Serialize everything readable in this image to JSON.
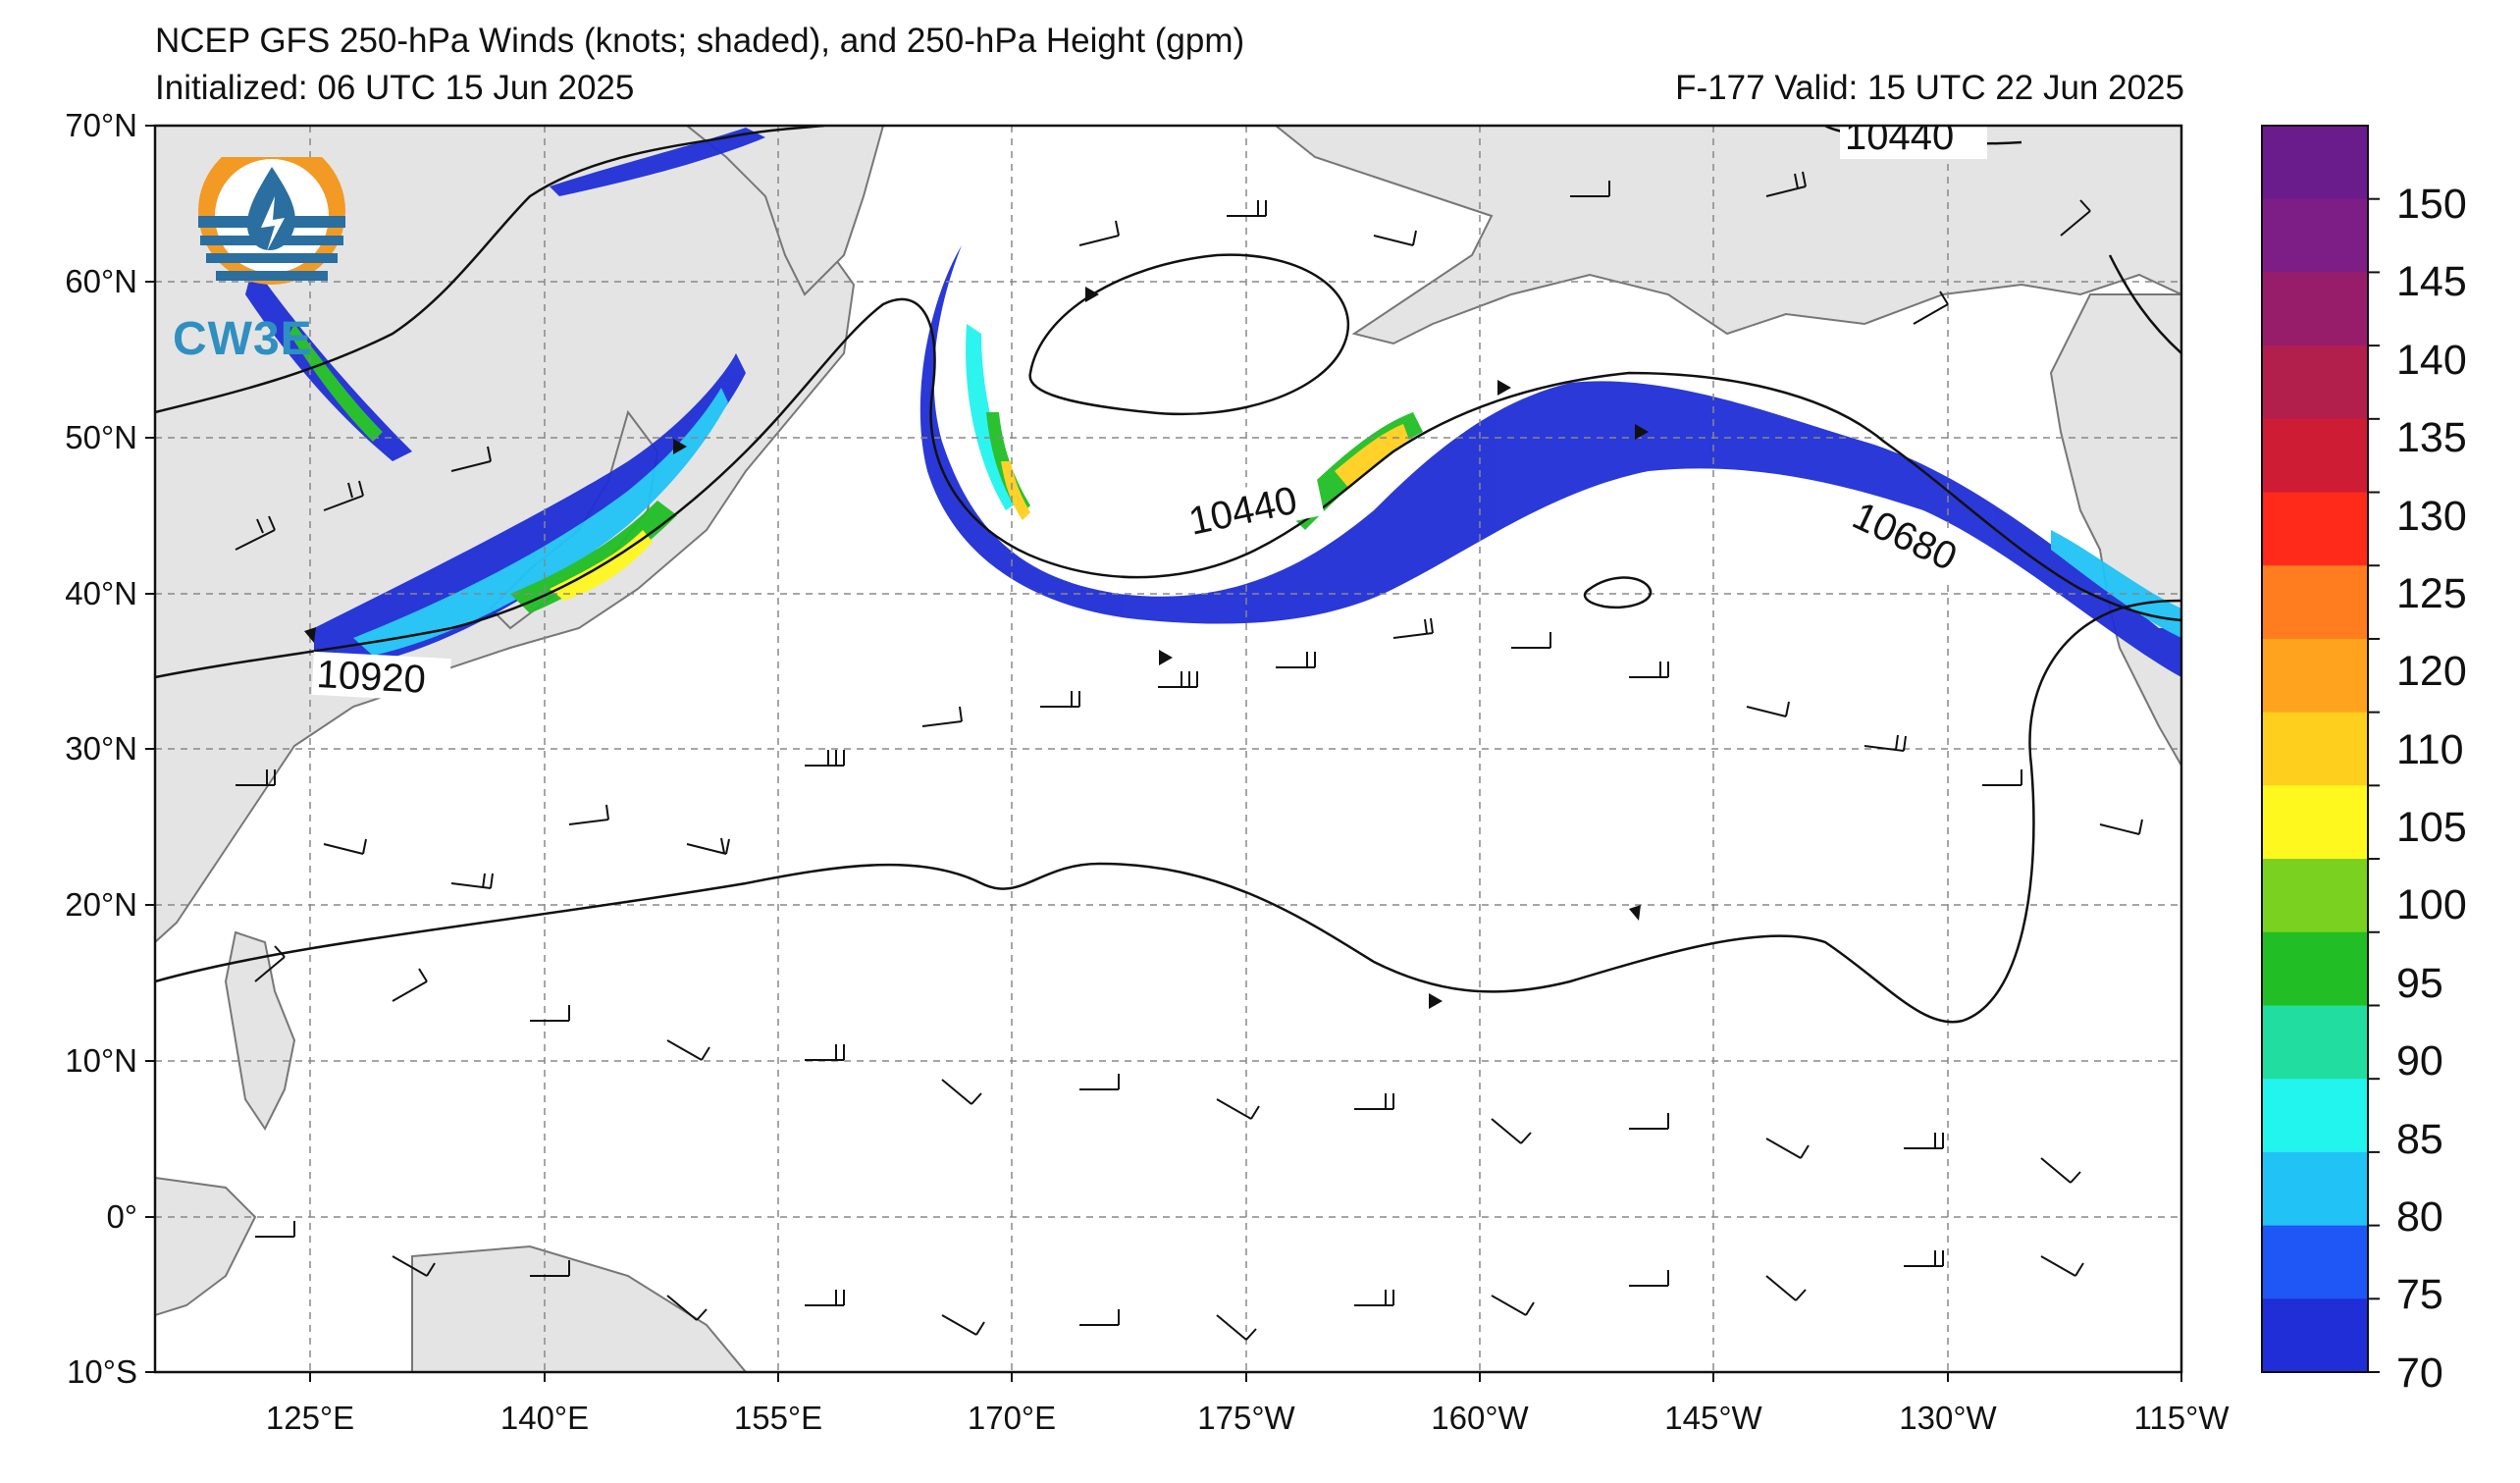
{
  "title": {
    "line1": "NCEP GFS 250-hPa Winds (knots; shaded), and 250-hPa Height (gpm)",
    "line2": "Initialized: 06 UTC 15 Jun 2025",
    "valid": "F-177  Valid: 15 UTC 22 Jun 2025"
  },
  "logo": {
    "text": "CW3E",
    "icon": "cw3e-logo-icon"
  },
  "axes": {
    "lat_labels": [
      "70°N",
      "60°N",
      "50°N",
      "40°N",
      "30°N",
      "20°N",
      "10°N",
      "0°",
      "10°S"
    ],
    "lon_labels": [
      "125°E",
      "140°E",
      "155°E",
      "170°E",
      "175°W",
      "160°W",
      "145°W",
      "130°W",
      "115°W"
    ]
  },
  "colorbar": {
    "labels": [
      "150",
      "145",
      "140",
      "135",
      "130",
      "125",
      "120",
      "110",
      "105",
      "100",
      "95",
      "90",
      "85",
      "80",
      "75",
      "70"
    ],
    "colors": [
      "#6a1b8c",
      "#7d1e86",
      "#971d6b",
      "#b31f4d",
      "#cf1c35",
      "#ff2a1a",
      "#ff7d1f",
      "#ffa31e",
      "#ffcf1e",
      "#fff81f",
      "#7ad11f",
      "#21be25",
      "#21dea0",
      "#22f4ee",
      "#21c3f6",
      "#1f56f6",
      "#1f2ed6"
    ]
  },
  "contour_labels": [
    "10440",
    "10440",
    "10680",
    "10920"
  ]
}
